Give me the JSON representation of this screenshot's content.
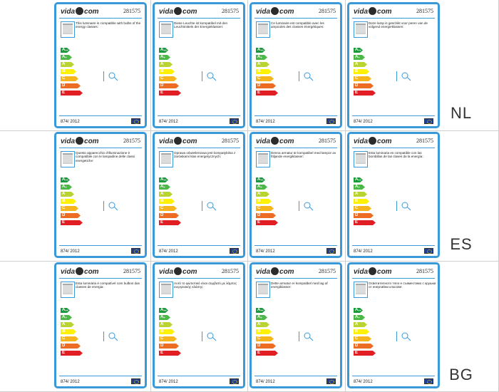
{
  "brand_text": "vida",
  "brand_suffix": "com",
  "labels": [
    {
      "lang": "EN",
      "code": "281575",
      "reg": "874/ 2012",
      "desc": "This luminaire is compatible with bulbs of the energy classes:"
    },
    {
      "lang": "DE",
      "code": "281575",
      "reg": "874/ 2012",
      "desc": "Diese Leuchte ist kompatibel mit den Leuchtmitteln der Energieklassen:"
    },
    {
      "lang": "FR",
      "code": "281575",
      "reg": "874/ 2012",
      "desc": "Ce luminaire est compatible avec les ampoules des classes énergétiques:"
    },
    {
      "lang": "NL",
      "code": "281575",
      "reg": "874/ 2012",
      "desc": "Deze lamp is geschikt voor peren van de volgend energieklassen:"
    },
    {
      "lang": "IT",
      "code": "281575",
      "reg": "874/ 2012",
      "desc": "Questo apparecchio d'illuminazione è compatibile con le lampadine delle classi energetiche:"
    },
    {
      "lang": "PL",
      "code": "281575",
      "reg": "874/ 2012",
      "desc": "Oprawa oświetleniowa jest kompatybilna z żarówkami klas energetycznych:"
    },
    {
      "lang": "SE",
      "code": "281575",
      "reg": "874/ 2012",
      "desc": "Denna armatur är kompatibel med lampor av följande energiklasser:"
    },
    {
      "lang": "ES",
      "code": "281575",
      "reg": "874/ 2012",
      "desc": "Esta luminaria es compatible con las bombillas de las clases de la energía:"
    },
    {
      "lang": "PT",
      "code": "281575",
      "reg": "874/ 2012",
      "desc": "Esta luminária é compatível com bulbos das classes de energia:"
    },
    {
      "lang": "EL",
      "code": "281575",
      "reg": "874/ 2012",
      "desc": "Αυτό το φωτιστικό είναι συμβατό με λάμπες ενεργειακής κλάσης:"
    },
    {
      "lang": "DA",
      "code": "281575",
      "reg": "874/ 2012",
      "desc": "Dette armatur er kompatibel med lag af energiklasser:"
    },
    {
      "lang": "BG",
      "code": "281575",
      "reg": "874/ 2012",
      "desc": "Осветителното тяло е съвместимо с крушки от енергийни класове:"
    }
  ],
  "energy_classes": [
    {
      "main": "A",
      "sup": "++",
      "color": "#1a9a3a"
    },
    {
      "main": "A",
      "sup": "+",
      "color": "#4cb848"
    },
    {
      "main": "A",
      "sup": "",
      "color": "#b9d431"
    },
    {
      "main": "B",
      "sup": "",
      "color": "#fef200"
    },
    {
      "main": "C",
      "sup": "",
      "color": "#f7b51d"
    },
    {
      "main": "D",
      "sup": "",
      "color": "#ec6c23"
    },
    {
      "main": "E",
      "sup": "",
      "color": "#e21e25"
    }
  ],
  "colors": {
    "frame": "#3a9ad9",
    "grid_line": "#cfcfcf",
    "flag": "#1c3f94"
  }
}
